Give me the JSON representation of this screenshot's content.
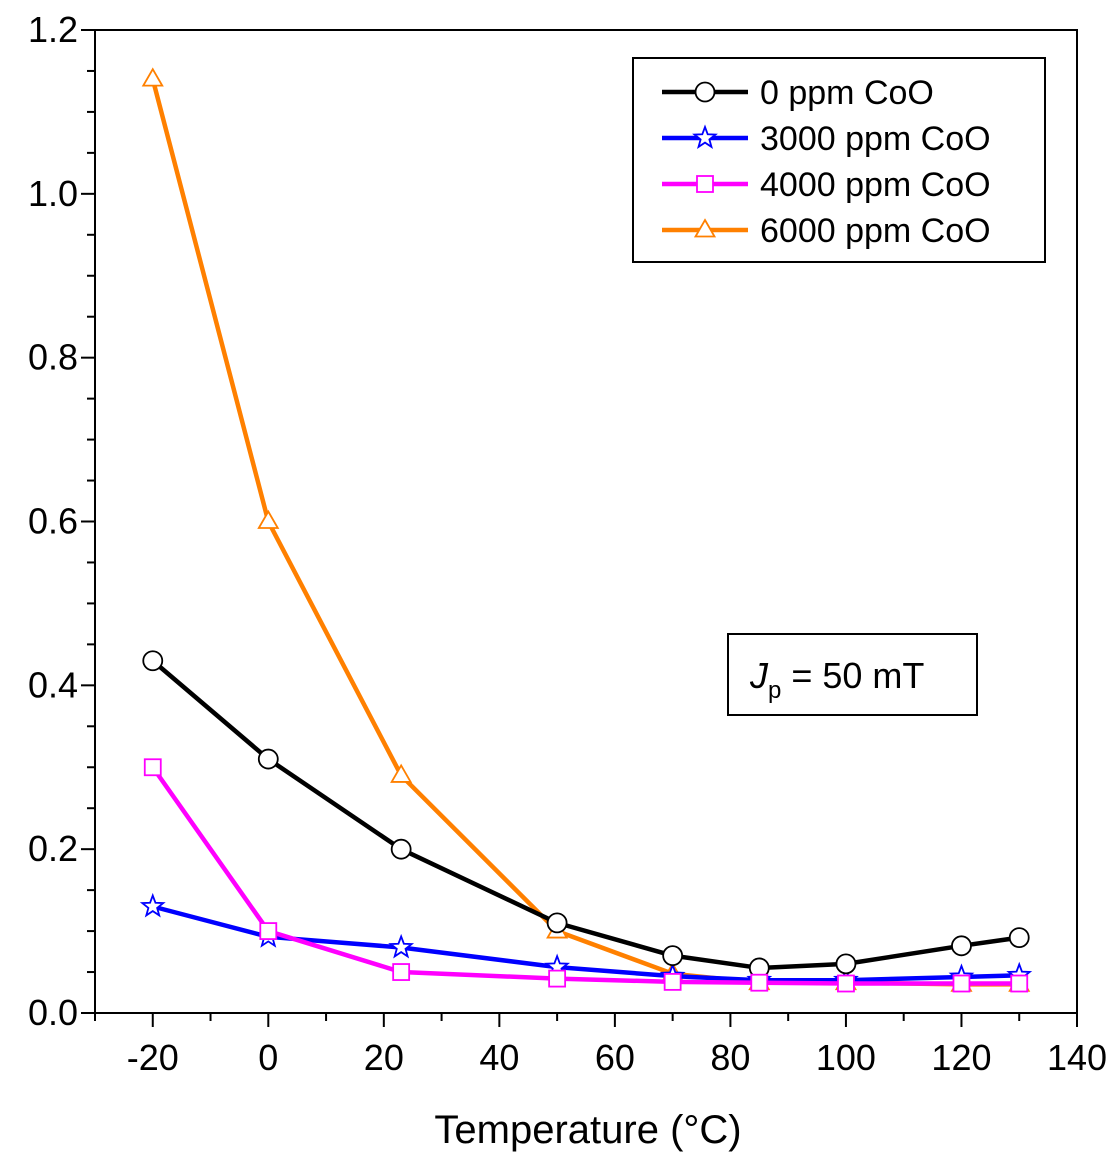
{
  "chart_data": {
    "type": "line",
    "title": "",
    "xlabel": "Temperature (°C)",
    "ylabel": "",
    "xlim": [
      -30,
      140
    ],
    "ylim": [
      0,
      1.2
    ],
    "xticks": [
      -20,
      0,
      20,
      40,
      60,
      80,
      100,
      120,
      140
    ],
    "xtick_labels": [
      "-20",
      "0",
      "20",
      "40",
      "60",
      "80",
      "100",
      "120",
      "140"
    ],
    "yticks": [
      0,
      0.2,
      0.4,
      0.6,
      0.8,
      1.0,
      1.2
    ],
    "ytick_labels": [
      "0.0",
      "0.2",
      "0.4",
      "0.6",
      "0.8",
      "1.0",
      "1.2"
    ],
    "x": [
      -20,
      0,
      23,
      50,
      70,
      85,
      100,
      120,
      130
    ],
    "grid": false,
    "legend_position": "top-right",
    "series": [
      {
        "name": "0 ppm CoO",
        "color": "#000000",
        "marker": "circle",
        "values": [
          0.43,
          0.31,
          0.2,
          0.11,
          0.07,
          0.055,
          0.06,
          0.082,
          0.092
        ]
      },
      {
        "name": "3000 ppm CoO",
        "color": "#0000ff",
        "marker": "star",
        "values": [
          0.13,
          0.093,
          0.08,
          0.056,
          0.045,
          0.04,
          0.04,
          0.044,
          0.046
        ]
      },
      {
        "name": "4000 ppm CoO",
        "color": "#ff00ff",
        "marker": "square",
        "values": [
          0.3,
          0.1,
          0.05,
          0.042,
          0.038,
          0.037,
          0.036,
          0.036,
          0.036
        ]
      },
      {
        "name": "6000 ppm CoO",
        "color": "#ff8000",
        "marker": "triangle",
        "values": [
          1.14,
          0.6,
          0.29,
          0.1,
          0.048,
          0.037,
          0.037,
          0.035,
          0.035
        ]
      }
    ],
    "annotation": {
      "symbol": "J",
      "subscript": "p",
      "text": " = 50 mT"
    }
  }
}
